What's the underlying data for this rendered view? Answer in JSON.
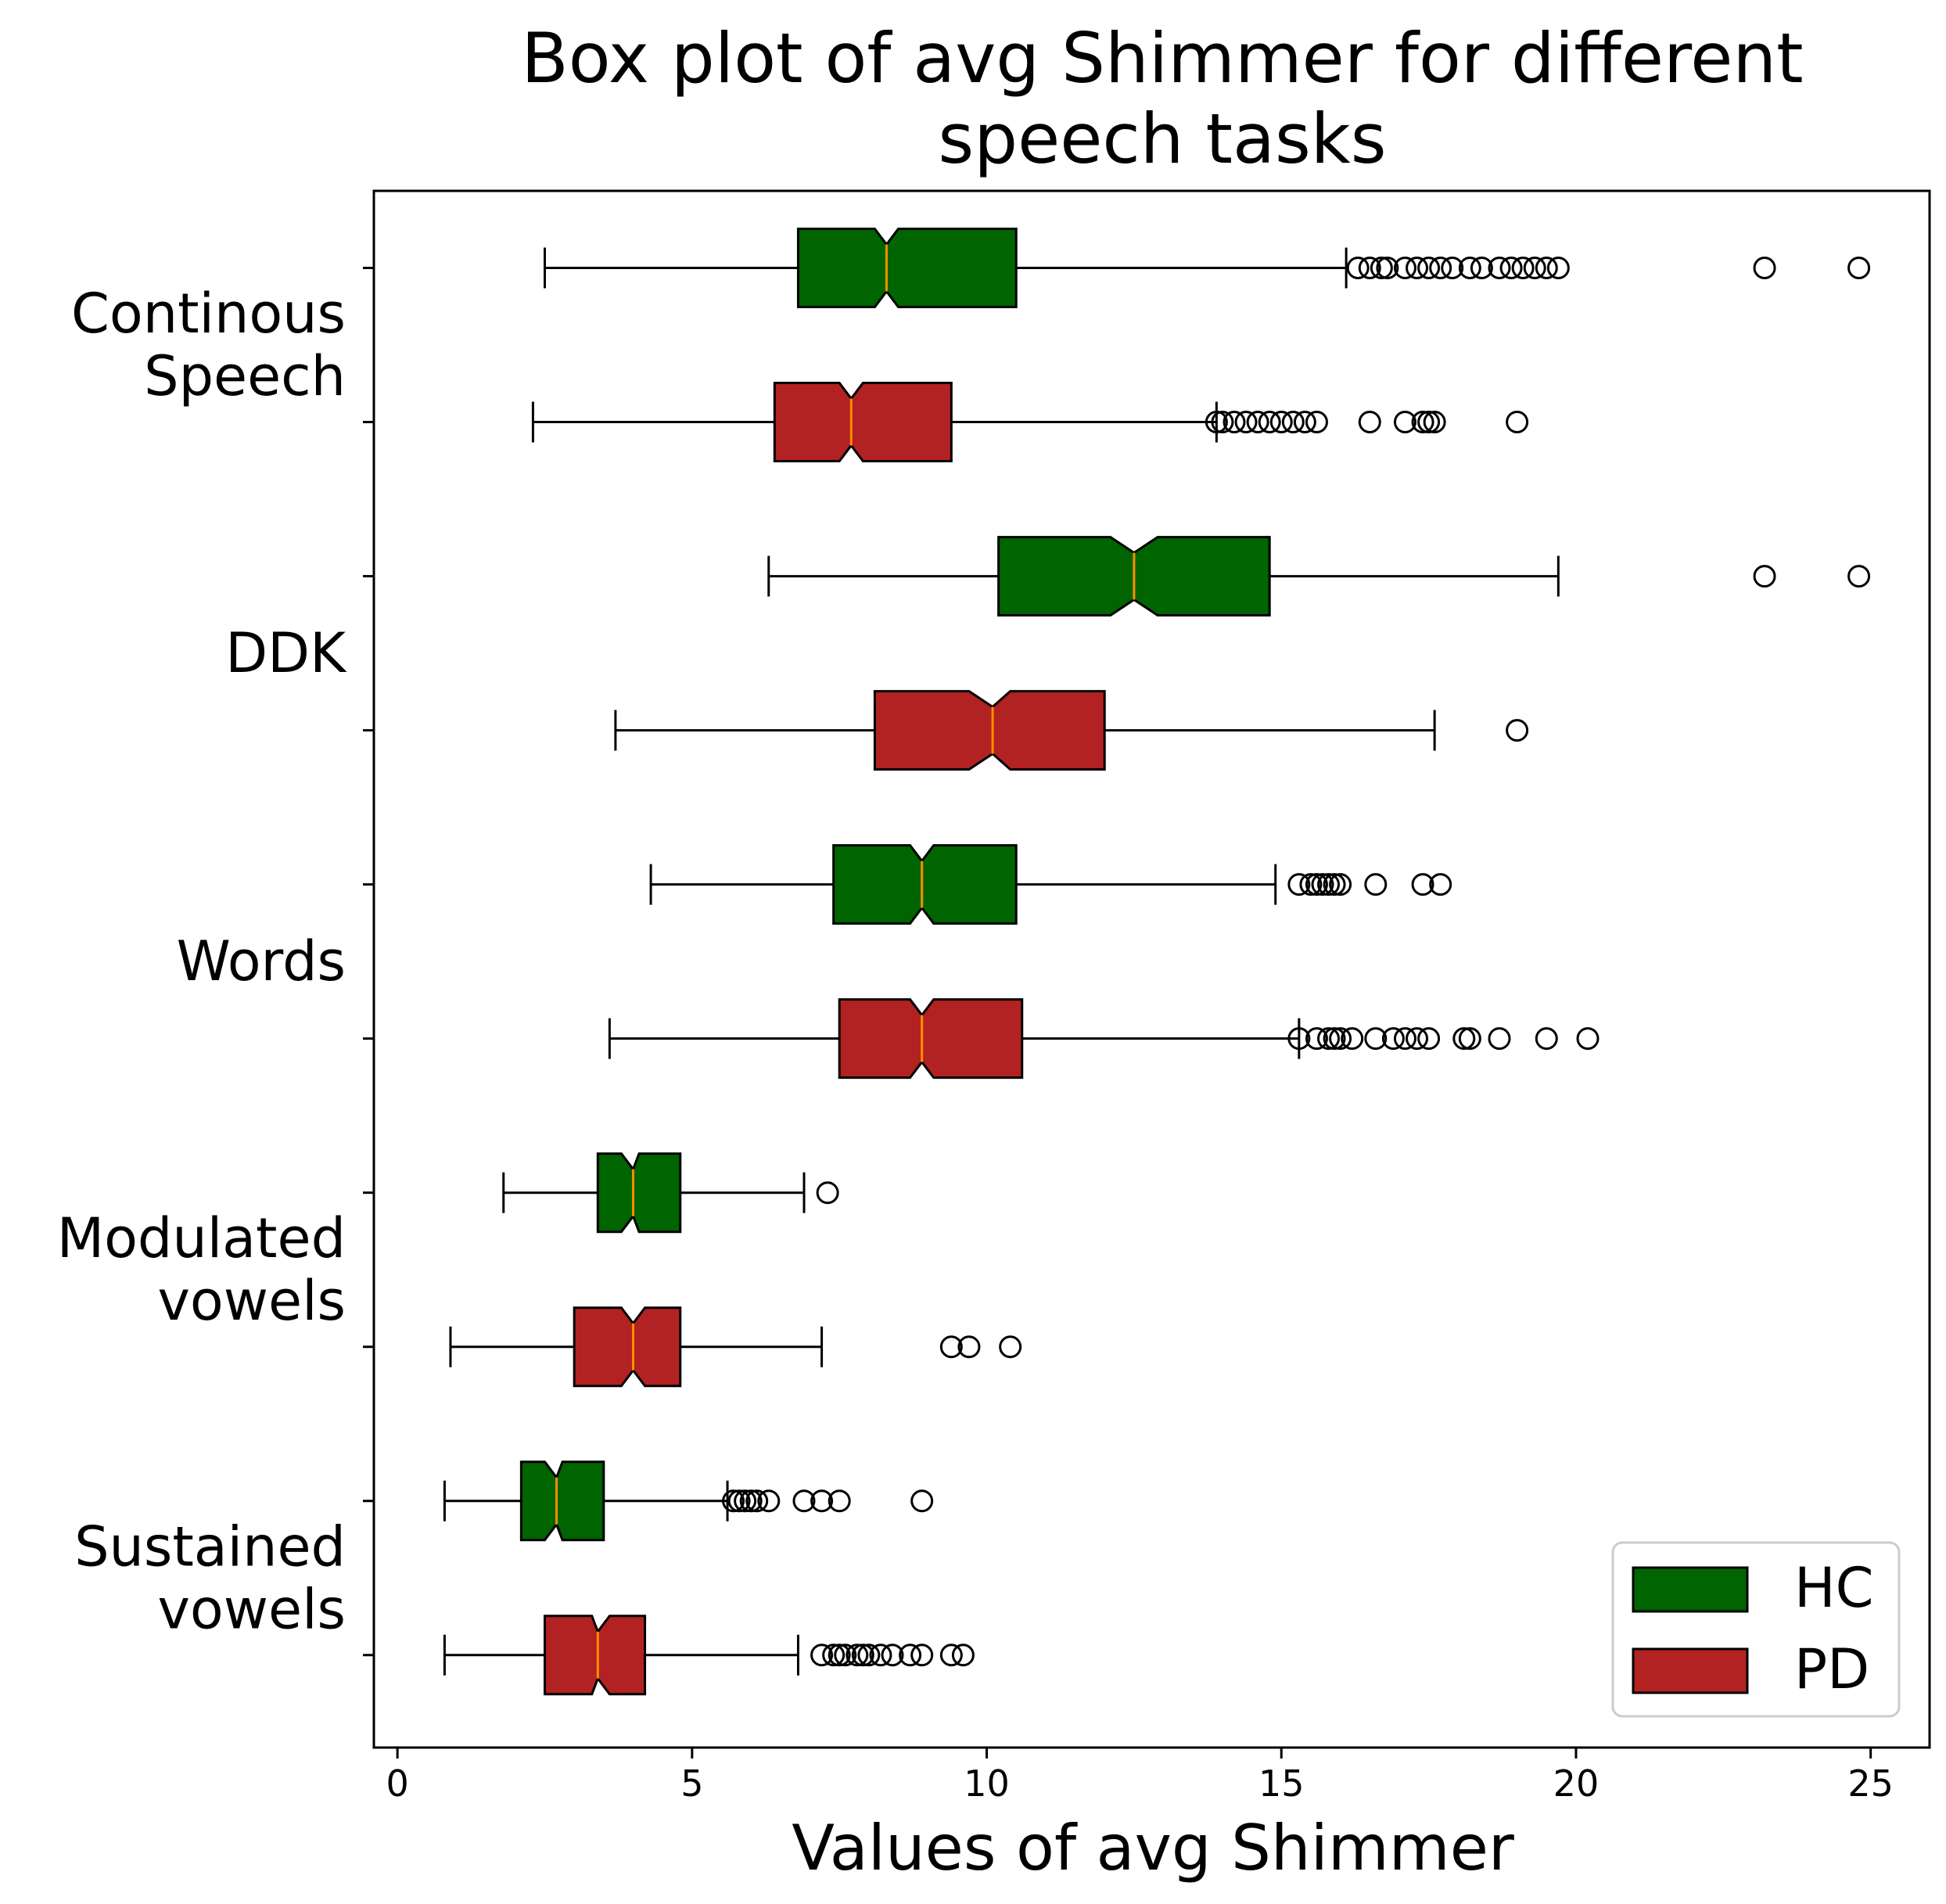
{
  "chart_data": {
    "type": "boxplot",
    "title_lines": [
      "Box plot of avg Shimmer for different",
      "speech tasks"
    ],
    "xlabel": "Values of avg Shimmer",
    "ylabel": "",
    "xlim": [
      -0.4,
      26.0
    ],
    "xticks": [
      0,
      5,
      10,
      15,
      20,
      25
    ],
    "notched": true,
    "orientation": "horizontal",
    "grid": false,
    "legend": {
      "position": "bottom-right",
      "entries": [
        {
          "label": "HC",
          "color": "#006400"
        },
        {
          "label": "PD",
          "color": "#b22222"
        }
      ]
    },
    "median_color": "#ff8c00",
    "tasks": [
      {
        "label_lines": [
          "Continous",
          "Speech"
        ],
        "group_ids": [
          "cs-hc",
          "cs-pd"
        ]
      },
      {
        "label_lines": [
          "DDK"
        ],
        "group_ids": [
          "ddk-hc",
          "ddk-pd"
        ]
      },
      {
        "label_lines": [
          "Words"
        ],
        "group_ids": [
          "words-hc",
          "words-pd"
        ]
      },
      {
        "label_lines": [
          "Modulated",
          "vowels"
        ],
        "group_ids": [
          "mod-hc",
          "mod-pd"
        ]
      },
      {
        "label_lines": [
          "Sustained",
          "vowels"
        ],
        "group_ids": [
          "sus-hc",
          "sus-pd"
        ]
      }
    ],
    "series": [
      {
        "id": "cs-hc",
        "group": "HC",
        "task": "Continous Speech",
        "whislo": 2.5,
        "q1": 6.8,
        "med": 8.3,
        "q3": 10.5,
        "whishi": 16.1,
        "notch_lo": 8.1,
        "notch_hi": 8.5,
        "fliers": [
          16.3,
          16.5,
          16.7,
          16.8,
          17.1,
          17.3,
          17.5,
          17.7,
          17.9,
          18.2,
          18.4,
          18.7,
          18.9,
          19.1,
          19.3,
          19.5,
          19.7,
          23.2,
          24.8
        ]
      },
      {
        "id": "cs-pd",
        "group": "PD",
        "task": "Continous Speech",
        "whislo": 2.3,
        "q1": 6.4,
        "med": 7.7,
        "q3": 9.4,
        "whishi": 13.9,
        "notch_lo": 7.5,
        "notch_hi": 7.9,
        "fliers": [
          13.9,
          14.0,
          14.2,
          14.4,
          14.6,
          14.8,
          15.0,
          15.2,
          15.4,
          15.6,
          16.5,
          17.1,
          17.4,
          17.5,
          17.6,
          19.0
        ]
      },
      {
        "id": "ddk-hc",
        "group": "HC",
        "task": "DDK",
        "whislo": 6.3,
        "q1": 10.2,
        "med": 12.5,
        "q3": 14.8,
        "whishi": 19.7,
        "notch_lo": 12.1,
        "notch_hi": 12.9,
        "fliers": [
          23.2,
          24.8
        ]
      },
      {
        "id": "ddk-pd",
        "group": "PD",
        "task": "DDK",
        "whislo": 3.7,
        "q1": 8.1,
        "med": 10.1,
        "q3": 12.0,
        "whishi": 17.6,
        "notch_lo": 9.7,
        "notch_hi": 10.4,
        "fliers": [
          19.0
        ]
      },
      {
        "id": "words-hc",
        "group": "HC",
        "task": "Words",
        "whislo": 4.3,
        "q1": 7.4,
        "med": 8.9,
        "q3": 10.5,
        "whishi": 14.9,
        "notch_lo": 8.7,
        "notch_hi": 9.1,
        "fliers": [
          15.3,
          15.5,
          15.6,
          15.7,
          15.8,
          15.9,
          16.0,
          16.6,
          17.4,
          17.7
        ]
      },
      {
        "id": "words-pd",
        "group": "PD",
        "task": "Words",
        "whislo": 3.6,
        "q1": 7.5,
        "med": 8.9,
        "q3": 10.6,
        "whishi": 15.3,
        "notch_lo": 8.7,
        "notch_hi": 9.1,
        "fliers": [
          15.3,
          15.6,
          15.8,
          15.9,
          16.0,
          16.2,
          16.6,
          16.9,
          17.1,
          17.3,
          17.5,
          18.1,
          18.2,
          18.7,
          19.5,
          20.2
        ]
      },
      {
        "id": "mod-hc",
        "group": "HC",
        "task": "Modulated vowels",
        "whislo": 1.8,
        "q1": 3.4,
        "med": 4.0,
        "q3": 4.8,
        "whishi": 6.9,
        "notch_lo": 3.8,
        "notch_hi": 4.1,
        "fliers": [
          7.3
        ]
      },
      {
        "id": "mod-pd",
        "group": "PD",
        "task": "Modulated vowels",
        "whislo": 0.9,
        "q1": 3.0,
        "med": 4.0,
        "q3": 4.8,
        "whishi": 7.2,
        "notch_lo": 3.8,
        "notch_hi": 4.2,
        "fliers": [
          9.4,
          9.7,
          10.4
        ]
      },
      {
        "id": "sus-hc",
        "group": "HC",
        "task": "Sustained vowels",
        "whislo": 0.8,
        "q1": 2.1,
        "med": 2.7,
        "q3": 3.5,
        "whishi": 5.6,
        "notch_lo": 2.5,
        "notch_hi": 2.8,
        "fliers": [
          5.7,
          5.8,
          5.9,
          6.0,
          6.1,
          6.3,
          6.9,
          7.2,
          7.5,
          8.9
        ]
      },
      {
        "id": "sus-pd",
        "group": "PD",
        "task": "Sustained vowels",
        "whislo": 0.8,
        "q1": 2.5,
        "med": 3.4,
        "q3": 4.2,
        "whishi": 6.8,
        "notch_lo": 3.3,
        "notch_hi": 3.6,
        "fliers": [
          7.2,
          7.4,
          7.5,
          7.6,
          7.8,
          7.9,
          8.0,
          8.2,
          8.4,
          8.7,
          8.9,
          9.4,
          9.6
        ]
      }
    ]
  }
}
